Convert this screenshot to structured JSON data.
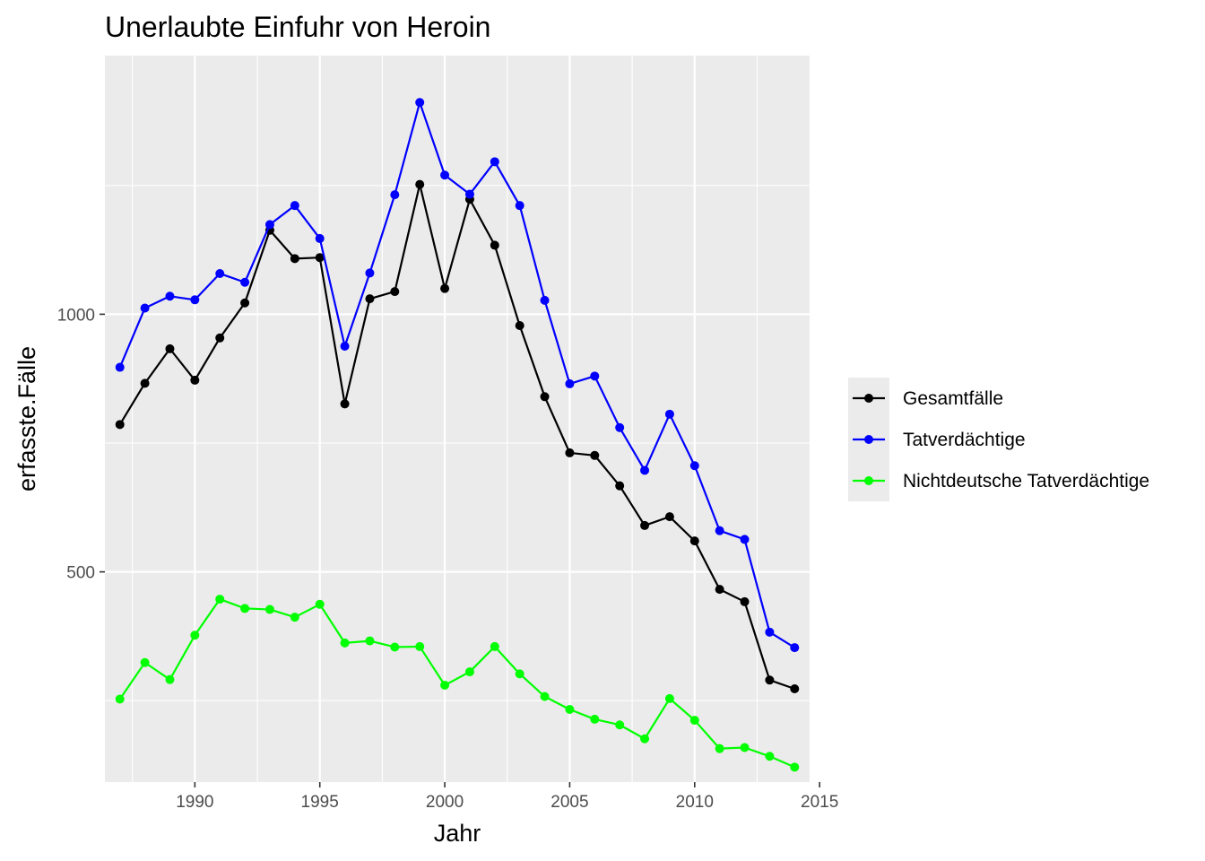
{
  "chart_data": {
    "type": "line",
    "title": "Unerlaubte Einfuhr von Heroin",
    "xlabel": "Jahr",
    "ylabel": "erfasste.Fälle",
    "xlim": [
      1986.4,
      2014.6
    ],
    "ylim": [
      92,
      1502
    ],
    "x_ticks": [
      1990,
      1995,
      2000,
      2005,
      2010,
      2015
    ],
    "x_tick_labels": [
      "1990",
      "1995",
      "2000",
      "2005",
      "2010",
      "2015"
    ],
    "y_ticks": [
      500,
      1000
    ],
    "y_tick_labels": [
      "500",
      "1000"
    ],
    "grid": true,
    "legend_position": "right",
    "x": [
      1987,
      1988,
      1989,
      1990,
      1991,
      1992,
      1993,
      1994,
      1995,
      1996,
      1997,
      1998,
      1999,
      2000,
      2001,
      2002,
      2003,
      2004,
      2005,
      2006,
      2007,
      2008,
      2009,
      2010,
      2011,
      2012,
      2013,
      2014
    ],
    "series": [
      {
        "name": "Gesamtfälle",
        "color": "#000000",
        "values": [
          786,
          866,
          933,
          872,
          954,
          1022,
          1163,
          1108,
          1110,
          826,
          1030,
          1044,
          1252,
          1050,
          1223,
          1134,
          978,
          840,
          731,
          726,
          667,
          590,
          607,
          560,
          466,
          442,
          290,
          273
        ]
      },
      {
        "name": "Tatverdächtige",
        "color": "#0000ff",
        "values": [
          897,
          1012,
          1035,
          1028,
          1079,
          1062,
          1174,
          1211,
          1147,
          938,
          1080,
          1232,
          1411,
          1270,
          1233,
          1296,
          1211,
          1027,
          865,
          880,
          780,
          697,
          806,
          706,
          580,
          563,
          383,
          353
        ]
      },
      {
        "name": "Nichtdeutsche Tatverdächtige",
        "color": "#00ff00",
        "values": [
          253,
          324,
          291,
          377,
          447,
          429,
          427,
          412,
          437,
          362,
          366,
          354,
          355,
          280,
          306,
          355,
          302,
          258,
          233,
          214,
          203,
          176,
          254,
          212,
          157,
          159,
          142,
          121
        ]
      }
    ]
  }
}
